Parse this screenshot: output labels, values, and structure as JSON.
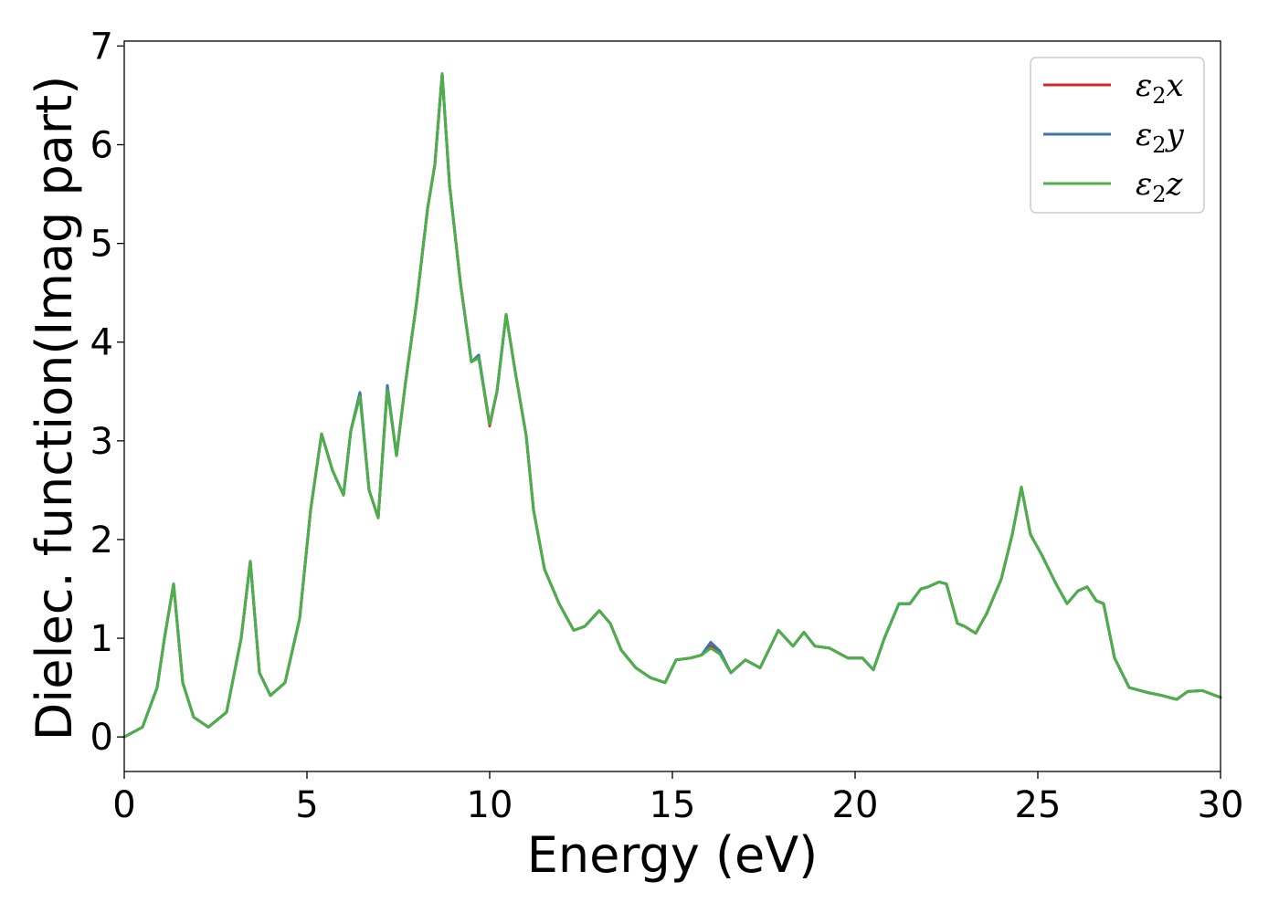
{
  "chart_data": {
    "type": "line",
    "xlabel": "Energy (eV)",
    "ylabel": "Dielec. function(Imag part)",
    "xlim": [
      0,
      30
    ],
    "ylim": [
      -0.35,
      7.05
    ],
    "xticks": [
      "0",
      "5",
      "10",
      "15",
      "20",
      "25",
      "30"
    ],
    "yticks": [
      "0",
      "1",
      "2",
      "3",
      "4",
      "5",
      "6",
      "7"
    ],
    "grid": false,
    "legend_position": "top-right",
    "x": [
      0,
      0.5,
      0.9,
      1.1,
      1.35,
      1.6,
      1.9,
      2.3,
      2.8,
      3.2,
      3.45,
      3.7,
      4.0,
      4.4,
      4.8,
      5.1,
      5.4,
      5.7,
      6.0,
      6.2,
      6.45,
      6.7,
      6.95,
      7.2,
      7.45,
      7.7,
      8.0,
      8.3,
      8.5,
      8.7,
      8.9,
      9.2,
      9.5,
      9.7,
      10.0,
      10.2,
      10.45,
      10.7,
      11.0,
      11.2,
      11.5,
      11.9,
      12.3,
      12.6,
      13.0,
      13.3,
      13.6,
      14.0,
      14.4,
      14.8,
      15.1,
      15.5,
      15.8,
      16.05,
      16.3,
      16.6,
      17.0,
      17.4,
      17.9,
      18.3,
      18.6,
      18.9,
      19.3,
      19.8,
      20.2,
      20.5,
      20.8,
      21.2,
      21.5,
      21.8,
      22.0,
      22.3,
      22.5,
      22.8,
      23.0,
      23.3,
      23.6,
      24.0,
      24.3,
      24.55,
      24.8,
      25.1,
      25.5,
      25.8,
      26.1,
      26.35,
      26.6,
      26.8,
      27.1,
      27.5,
      28.0,
      28.4,
      28.8,
      29.1,
      29.5,
      30.0
    ],
    "series": [
      {
        "name": "ε₂x",
        "color": "#d62728",
        "values": [
          0.0,
          0.1,
          0.5,
          1.0,
          1.55,
          0.55,
          0.2,
          0.1,
          0.25,
          1.0,
          1.78,
          0.65,
          0.42,
          0.55,
          1.2,
          2.3,
          3.07,
          2.7,
          2.45,
          3.1,
          3.48,
          2.5,
          2.22,
          3.55,
          2.85,
          3.6,
          4.4,
          5.35,
          5.8,
          6.72,
          5.6,
          4.6,
          3.8,
          3.85,
          3.15,
          3.5,
          4.28,
          3.7,
          3.05,
          2.3,
          1.7,
          1.35,
          1.08,
          1.12,
          1.28,
          1.15,
          0.88,
          0.7,
          0.6,
          0.55,
          0.78,
          0.8,
          0.83,
          0.92,
          0.85,
          0.65,
          0.78,
          0.7,
          1.08,
          0.92,
          1.06,
          0.92,
          0.9,
          0.8,
          0.8,
          0.68,
          1.0,
          1.35,
          1.35,
          1.5,
          1.52,
          1.57,
          1.55,
          1.15,
          1.12,
          1.05,
          1.25,
          1.6,
          2.05,
          2.53,
          2.05,
          1.85,
          1.55,
          1.35,
          1.48,
          1.52,
          1.38,
          1.35,
          0.8,
          0.5,
          0.45,
          0.42,
          0.38,
          0.46,
          0.47,
          0.4
        ]
      },
      {
        "name": "ε₂y",
        "color": "#3b75af",
        "values": [
          0.0,
          0.1,
          0.5,
          1.0,
          1.55,
          0.55,
          0.2,
          0.1,
          0.25,
          1.0,
          1.78,
          0.65,
          0.42,
          0.55,
          1.2,
          2.3,
          3.07,
          2.7,
          2.45,
          3.1,
          3.49,
          2.5,
          2.22,
          3.56,
          2.85,
          3.6,
          4.4,
          5.35,
          5.8,
          6.72,
          5.6,
          4.6,
          3.8,
          3.87,
          3.17,
          3.5,
          4.28,
          3.7,
          3.05,
          2.3,
          1.7,
          1.35,
          1.08,
          1.12,
          1.28,
          1.15,
          0.88,
          0.7,
          0.6,
          0.55,
          0.78,
          0.8,
          0.83,
          0.96,
          0.87,
          0.65,
          0.78,
          0.7,
          1.08,
          0.92,
          1.06,
          0.92,
          0.9,
          0.8,
          0.8,
          0.68,
          1.0,
          1.35,
          1.35,
          1.5,
          1.52,
          1.57,
          1.55,
          1.15,
          1.12,
          1.05,
          1.25,
          1.6,
          2.05,
          2.53,
          2.05,
          1.85,
          1.55,
          1.35,
          1.48,
          1.52,
          1.38,
          1.35,
          0.8,
          0.5,
          0.45,
          0.42,
          0.38,
          0.46,
          0.47,
          0.4
        ]
      },
      {
        "name": "ε₂z",
        "color": "#4daf4a",
        "values": [
          0.0,
          0.1,
          0.5,
          1.0,
          1.55,
          0.55,
          0.2,
          0.1,
          0.25,
          1.0,
          1.78,
          0.65,
          0.42,
          0.55,
          1.2,
          2.3,
          3.07,
          2.7,
          2.45,
          3.1,
          3.45,
          2.5,
          2.22,
          3.52,
          2.85,
          3.6,
          4.4,
          5.35,
          5.8,
          6.72,
          5.6,
          4.6,
          3.8,
          3.84,
          3.17,
          3.5,
          4.28,
          3.7,
          3.05,
          2.3,
          1.7,
          1.35,
          1.08,
          1.12,
          1.28,
          1.15,
          0.88,
          0.7,
          0.6,
          0.55,
          0.78,
          0.8,
          0.83,
          0.9,
          0.84,
          0.65,
          0.78,
          0.7,
          1.08,
          0.92,
          1.06,
          0.92,
          0.9,
          0.8,
          0.8,
          0.68,
          1.0,
          1.35,
          1.35,
          1.5,
          1.52,
          1.57,
          1.55,
          1.15,
          1.12,
          1.05,
          1.25,
          1.6,
          2.05,
          2.53,
          2.05,
          1.85,
          1.55,
          1.35,
          1.48,
          1.52,
          1.38,
          1.35,
          0.8,
          0.5,
          0.45,
          0.42,
          0.38,
          0.46,
          0.47,
          0.4
        ]
      }
    ],
    "legend": [
      {
        "prefix": "ε",
        "sub": "2",
        "axis": "x"
      },
      {
        "prefix": "ε",
        "sub": "2",
        "axis": "y"
      },
      {
        "prefix": "ε",
        "sub": "2",
        "axis": "z"
      }
    ]
  }
}
